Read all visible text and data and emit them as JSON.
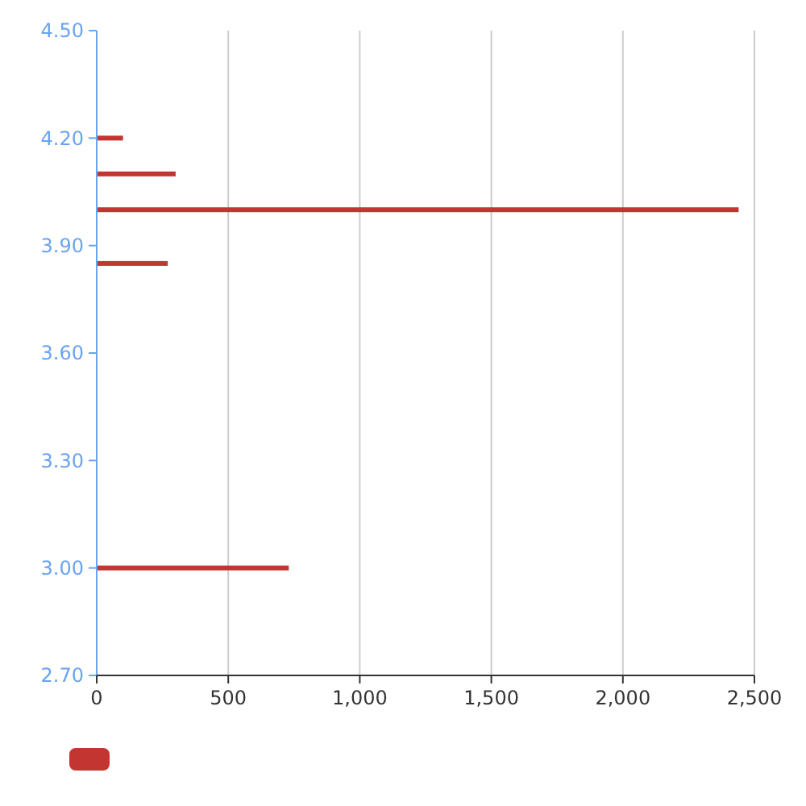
{
  "chart_data": {
    "type": "bar",
    "orientation": "horizontal",
    "x": [
      4.2,
      4.1,
      4.0,
      3.85,
      3.0
    ],
    "series": [
      {
        "color": "#c23531",
        "values": [
          100,
          300,
          2440,
          270,
          730
        ]
      }
    ],
    "xlim": [
      0,
      2500
    ],
    "xticks": [
      0,
      {
        "value": 500,
        "label": "500"
      },
      {
        "value": 1000,
        "label": "1,000"
      },
      {
        "value": 1500,
        "label": "1,500"
      },
      {
        "value": 2000,
        "label": "2,000"
      },
      {
        "value": 2500,
        "label": "2,500"
      }
    ],
    "ylim": [
      2.7,
      4.5
    ],
    "yticks": [
      {
        "value": 2.7,
        "label": "2.70"
      },
      {
        "value": 3.0,
        "label": "3.00"
      },
      {
        "value": 3.3,
        "label": "3.30"
      },
      {
        "value": 3.6,
        "label": "3.60"
      },
      {
        "value": 3.9,
        "label": "3.90"
      },
      {
        "value": 4.2,
        "label": "4.20"
      },
      {
        "value": 4.5,
        "label": "4.50"
      }
    ],
    "grid": "x"
  }
}
